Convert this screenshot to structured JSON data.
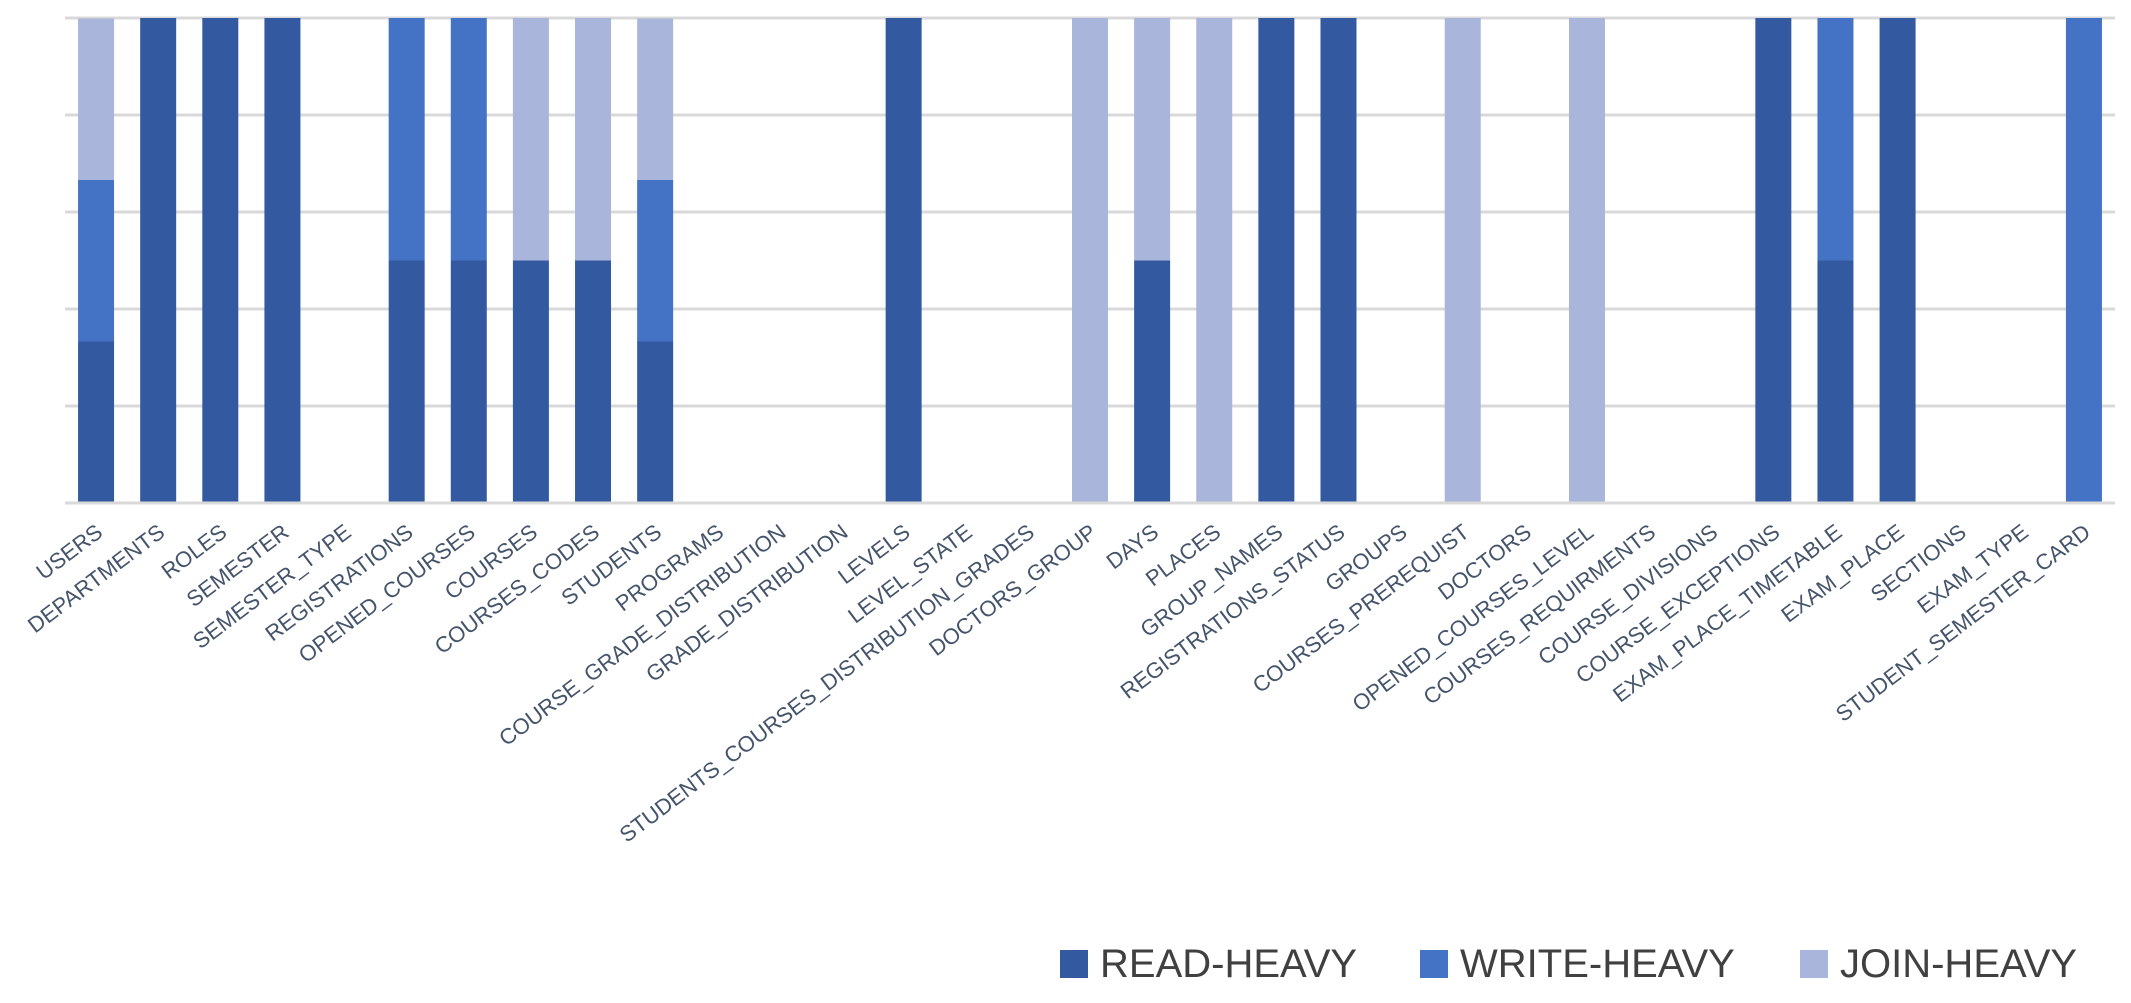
{
  "chart_data": {
    "type": "bar",
    "stacked": true,
    "normalized": true,
    "title": "",
    "xlabel": "",
    "ylabel": "",
    "ylim": [
      0,
      1
    ],
    "y_ticks_visible": false,
    "grid": true,
    "legend_position": "bottom-right",
    "categories": [
      "USERS",
      "DEPARTMENTS",
      "ROLES",
      "SEMESTER",
      "SEMESTER_TYPE",
      "REGISTRATIONS",
      "OPENED_COURSES",
      "COURSES",
      "COURSES_CODES",
      "STUDENTS",
      "PROGRAMS",
      "COURSE_GRADE_DISTRIBUTION",
      "GRADE_DISTRIBUTION",
      "LEVELS",
      "LEVEL_STATE",
      "STUDENTS_COURSES_DISTRIBUTION_GRADES",
      "DOCTORS_GROUP",
      "DAYS",
      "PLACES",
      "GROUP_NAMES",
      "REGISTRATIONS_STATUS",
      "GROUPS",
      "COURSES_PREREQUIST",
      "DOCTORS",
      "OPENED_COURSES_LEVEL",
      "COURSES_REQUIRMENTS",
      "COURSE_DIVISIONS",
      "COURSE_EXCEPTIONS",
      "EXAM_PLACE_TIMETABLE",
      "EXAM_PLACE",
      "SECTIONS",
      "EXAM_TYPE",
      "STUDENT_SEMESTER_CARD"
    ],
    "series": [
      {
        "name": "READ-HEAVY",
        "color": "#335aa1",
        "values": [
          0.333,
          1,
          1,
          1,
          0,
          0.5,
          0.5,
          0.5,
          0.5,
          0.333,
          0,
          0,
          0,
          1,
          0,
          0,
          0,
          0.5,
          0,
          1,
          1,
          0,
          0,
          0,
          0,
          0,
          0,
          1,
          0.5,
          1,
          0,
          0,
          0
        ]
      },
      {
        "name": "WRITE-HEAVY",
        "color": "#4472c4",
        "values": [
          0.333,
          0,
          0,
          0,
          0,
          0.5,
          0.5,
          0,
          0,
          0.333,
          0,
          0,
          0,
          0,
          0,
          0,
          0,
          0,
          0,
          0,
          0,
          0,
          0,
          0,
          0,
          0,
          0,
          0,
          0.5,
          0,
          0,
          0,
          1
        ]
      },
      {
        "name": "JOIN-HEAVY",
        "color": "#a9b5da",
        "values": [
          0.333,
          0,
          0,
          0,
          0,
          0,
          0,
          0.5,
          0.5,
          0.333,
          0,
          0,
          0,
          0,
          0,
          0,
          1,
          0.5,
          1,
          0,
          0,
          0,
          1,
          0,
          1,
          0,
          0,
          0,
          0,
          0,
          0,
          0,
          0
        ]
      }
    ]
  }
}
